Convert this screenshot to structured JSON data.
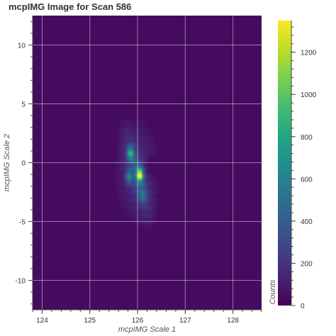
{
  "chart_data": {
    "type": "heatmap",
    "title": "mcpIMG Image for Scan 586",
    "xlabel": "mcpIMG Scale 1",
    "ylabel": "mcpIMG Scale 2",
    "xlim": [
      123.8,
      128.6
    ],
    "ylim": [
      -12.5,
      12.5
    ],
    "x_ticks": [
      124,
      125,
      126,
      127,
      128
    ],
    "y_ticks": [
      -10,
      -5,
      0,
      5,
      10
    ],
    "colorbar": {
      "label": "Counts",
      "range": [
        0,
        1350
      ],
      "ticks": [
        0,
        200,
        400,
        600,
        800,
        1000,
        1200
      ],
      "colormap": "viridis"
    },
    "grid": true,
    "features": [
      {
        "kind": "peak",
        "x": 126.05,
        "y": -1.0,
        "value": 1350
      },
      {
        "kind": "peak",
        "x": 125.85,
        "y": 0.8,
        "value": 780
      },
      {
        "kind": "peak",
        "x": 125.82,
        "y": -1.2,
        "value": 620
      },
      {
        "kind": "peak",
        "x": 126.1,
        "y": -2.8,
        "value": 480
      },
      {
        "kind": "ridge",
        "x": 125.95,
        "y": -0.5,
        "value": 320
      },
      {
        "kind": "dip",
        "x": 126.3,
        "y": -0.3,
        "value": 0
      }
    ],
    "background_value": 20
  }
}
